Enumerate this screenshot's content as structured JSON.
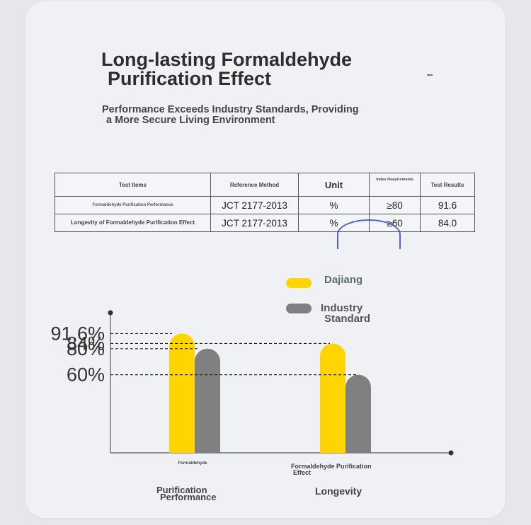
{
  "title_line1": "Long-lasting Formaldehyde",
  "title_line2": "Purification Effect",
  "subtitle_line1": "Performance Exceeds Industry Standards, Providing",
  "subtitle_line2": "a More Secure Living Environment",
  "table": {
    "headers": [
      "Test Items",
      "Reference Method",
      "Unit",
      "Index Requirements",
      "Test Results"
    ],
    "rows": [
      {
        "item": "Formaldehyde Purification Performance",
        "method": "JCT 2177-2013",
        "unit": "%",
        "requirement": "≥80",
        "result": "91.6"
      },
      {
        "item": "Longevity of Formaldehyde Purification Effect",
        "method": "JCT 2177-2013",
        "unit": "%",
        "requirement": "≥60",
        "result": "84.0"
      }
    ]
  },
  "chart_data": {
    "type": "bar",
    "categories": [
      "Purification Performance",
      "Longevity"
    ],
    "category_sublabels": [
      "Formaldehyde",
      "Formaldehyde Purification Effect"
    ],
    "series": [
      {
        "name": "Dajiang",
        "color": "#ffd500",
        "values": [
          91.6,
          84
        ]
      },
      {
        "name": "Industry Standard",
        "color": "#808080",
        "values": [
          80,
          60
        ]
      }
    ],
    "reference_labels": [
      "91.6%",
      "84%",
      "80%",
      "60%"
    ],
    "ylim": [
      0,
      100
    ],
    "legend_position": "top-right",
    "grid": false
  }
}
